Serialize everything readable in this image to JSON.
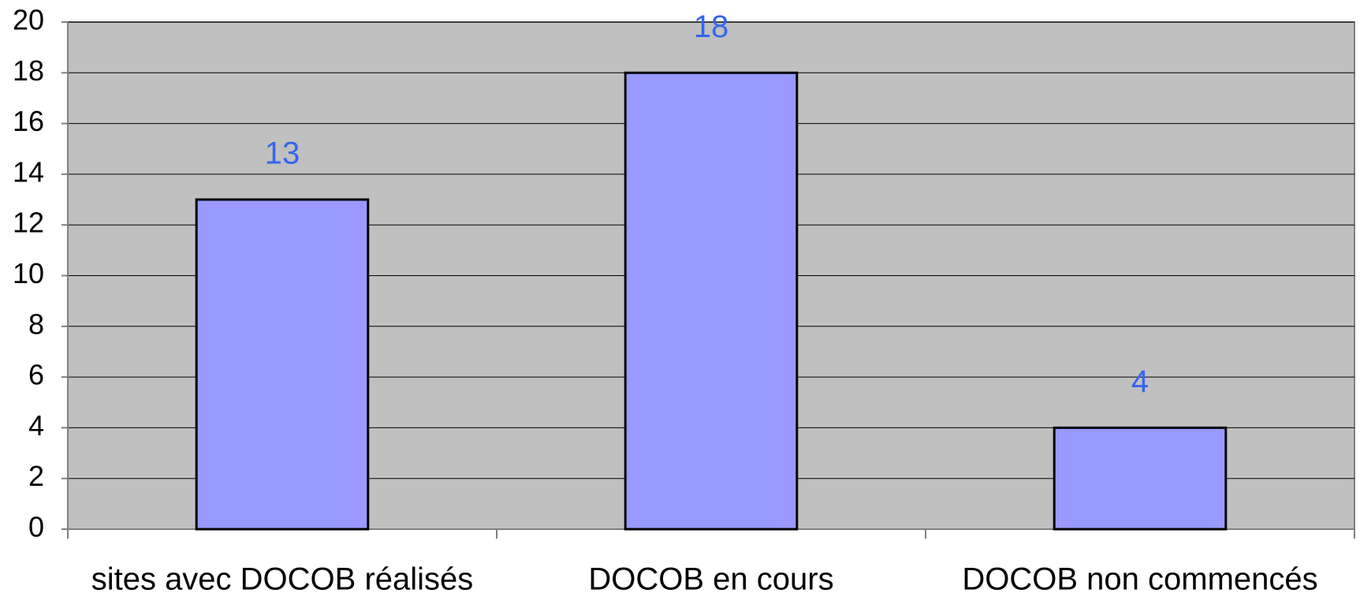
{
  "chart_data": {
    "type": "bar",
    "categories": [
      "sites avec DOCOB réalisés",
      "DOCOB en cours",
      "DOCOB non commencés"
    ],
    "values": [
      13,
      18,
      4
    ],
    "color": "#9999ff",
    "label_color": "#3366ee",
    "ylim": [
      0,
      20
    ],
    "yticks": [
      0,
      2,
      4,
      6,
      8,
      10,
      12,
      14,
      16,
      18,
      20
    ],
    "grid": true
  }
}
